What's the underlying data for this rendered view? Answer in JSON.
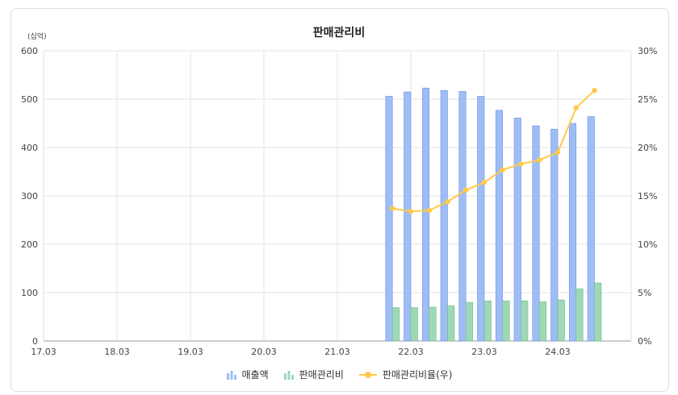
{
  "chart_data": {
    "type": "bar",
    "title": "판매관리비",
    "unit_label": "(십억)",
    "x_ticks": [
      "17.03",
      "18.03",
      "19.03",
      "20.03",
      "21.03",
      "22.03",
      "23.03",
      "24.03"
    ],
    "categories": [
      "21.12",
      "22.03",
      "22.06",
      "22.09",
      "22.12",
      "23.03",
      "23.06",
      "23.09",
      "23.12",
      "24.03",
      "24.06",
      "24.09"
    ],
    "series": [
      {
        "name": "매출액",
        "type": "bar",
        "axis": "left",
        "color": "#9fbdf5",
        "values": [
          506,
          515,
          523,
          518,
          516,
          506,
          477,
          461,
          445,
          438,
          450,
          464
        ]
      },
      {
        "name": "판매관리비",
        "type": "bar",
        "axis": "left",
        "color": "#9fd8b6",
        "values": [
          69,
          69,
          70,
          73,
          80,
          83,
          83,
          83,
          81,
          85,
          108,
          120
        ]
      },
      {
        "name": "판매관리비율(우)",
        "type": "line",
        "axis": "right",
        "color": "#ffc94a",
        "values": [
          13.7,
          13.4,
          13.5,
          14.4,
          15.6,
          16.4,
          17.7,
          18.3,
          18.7,
          19.5,
          24.1,
          25.9
        ]
      }
    ],
    "y_left": {
      "ticks": [
        "0",
        "100",
        "200",
        "300",
        "400",
        "500",
        "600"
      ],
      "range": [
        0,
        600
      ]
    },
    "y_right": {
      "ticks": [
        "0%",
        "5%",
        "10%",
        "15%",
        "20%",
        "25%",
        "30%"
      ],
      "range": [
        0,
        30
      ]
    },
    "grid": true,
    "legend_position": "bottom"
  }
}
